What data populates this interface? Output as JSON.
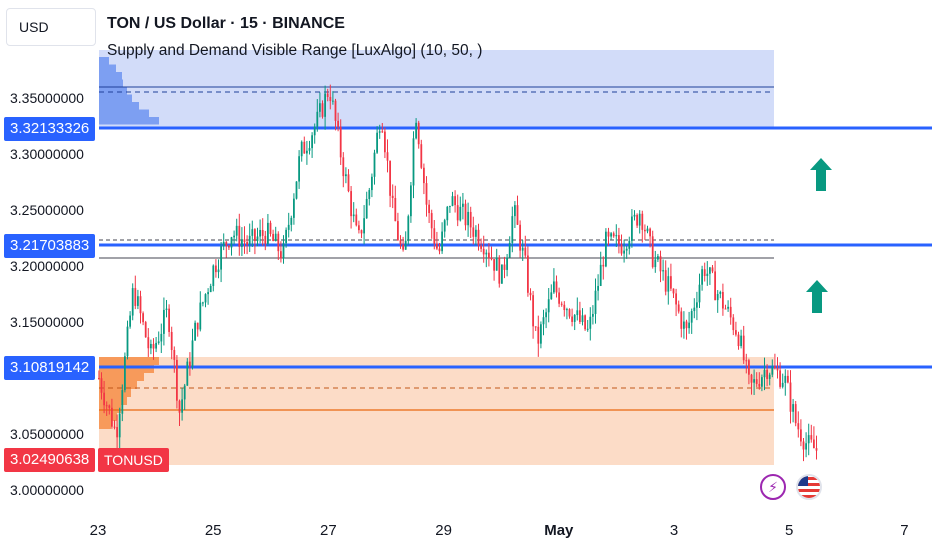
{
  "toolbar": {
    "currency_label": "USD"
  },
  "header": {
    "title": "TON / US Dollar · 15 · BINANCE",
    "indicator": "Supply and Demand Visible Range [LuxAlgo] (10, 50, )"
  },
  "price_axis": {
    "ticks": [
      "3.35000000",
      "3.30000000",
      "3.25000000",
      "3.20000000",
      "3.15000000",
      "3.05000000",
      "3.00000000"
    ]
  },
  "time_axis": {
    "ticks": [
      "23",
      "25",
      "27",
      "29",
      "May",
      "3",
      "5",
      "7"
    ]
  },
  "price_tags": {
    "supply_level": "3.32133326",
    "mid_level": "3.21703883",
    "demand_level": "3.10819142",
    "last_price": "3.02490638",
    "symbol": "TONUSD"
  },
  "colors": {
    "supply_zone": "#c7d3f7",
    "supply_histogram": "#7d9ff2",
    "demand_zone": "#fbd6bd",
    "demand_histogram": "#f79a5b",
    "level_line": "#2962ff",
    "candle_up": "#089981",
    "candle_down": "#f23645",
    "arrow": "#089981",
    "last_price_tag": "#f23645"
  },
  "icons": {
    "arrow_up_1": "arrow-up-icon",
    "arrow_up_2": "arrow-up-icon",
    "lightning": "lightning-icon",
    "us_flag": "us-flag-icon"
  },
  "chart_data": {
    "type": "candlestick",
    "symbol": "TONUSD",
    "interval": "15",
    "exchange": "BINANCE",
    "ylim": [
      2.98,
      3.4
    ],
    "supply_zone": {
      "top": 3.388,
      "bottom": 3.322,
      "avg": 3.355,
      "level": 3.32133326
    },
    "demand_zone": {
      "top": 3.118,
      "bottom": 3.022,
      "avg": 3.09,
      "level": 3.10819142,
      "equilibrium": 3.07
    },
    "mid_levels": [
      3.21703883,
      3.222,
      3.207
    ],
    "last_price": 3.02490638,
    "path": [
      [
        23.0,
        3.1
      ],
      [
        23.3,
        3.05
      ],
      [
        23.6,
        3.18
      ],
      [
        23.9,
        3.12
      ],
      [
        24.2,
        3.16
      ],
      [
        24.4,
        3.07
      ],
      [
        24.7,
        3.15
      ],
      [
        25.0,
        3.2
      ],
      [
        25.3,
        3.23
      ],
      [
        25.6,
        3.22
      ],
      [
        25.9,
        3.23
      ],
      [
        26.2,
        3.21
      ],
      [
        26.5,
        3.3
      ],
      [
        26.8,
        3.33
      ],
      [
        27.0,
        3.36
      ],
      [
        27.2,
        3.3
      ],
      [
        27.5,
        3.22
      ],
      [
        27.7,
        3.27
      ],
      [
        27.9,
        3.34
      ],
      [
        28.1,
        3.25
      ],
      [
        28.3,
        3.2
      ],
      [
        28.5,
        3.34
      ],
      [
        28.7,
        3.25
      ],
      [
        28.9,
        3.21
      ],
      [
        29.1,
        3.26
      ],
      [
        29.4,
        3.24
      ],
      [
        29.7,
        3.22
      ],
      [
        30.0,
        3.19
      ],
      [
        30.2,
        3.25
      ],
      [
        30.4,
        3.2
      ],
      [
        30.6,
        3.13
      ],
      [
        30.9,
        3.18
      ],
      [
        31.2,
        3.16
      ],
      [
        31.5,
        3.14
      ],
      [
        31.8,
        3.22
      ],
      [
        32.1,
        3.22
      ],
      [
        32.4,
        3.25
      ],
      [
        32.6,
        3.21
      ],
      [
        32.9,
        3.18
      ],
      [
        33.2,
        3.14
      ],
      [
        33.5,
        3.2
      ],
      [
        33.8,
        3.17
      ],
      [
        34.1,
        3.14
      ],
      [
        34.3,
        3.09
      ],
      [
        34.6,
        3.11
      ],
      [
        34.9,
        3.1
      ],
      [
        35.1,
        3.06
      ],
      [
        35.3,
        3.04
      ],
      [
        35.5,
        3.035
      ]
    ]
  }
}
